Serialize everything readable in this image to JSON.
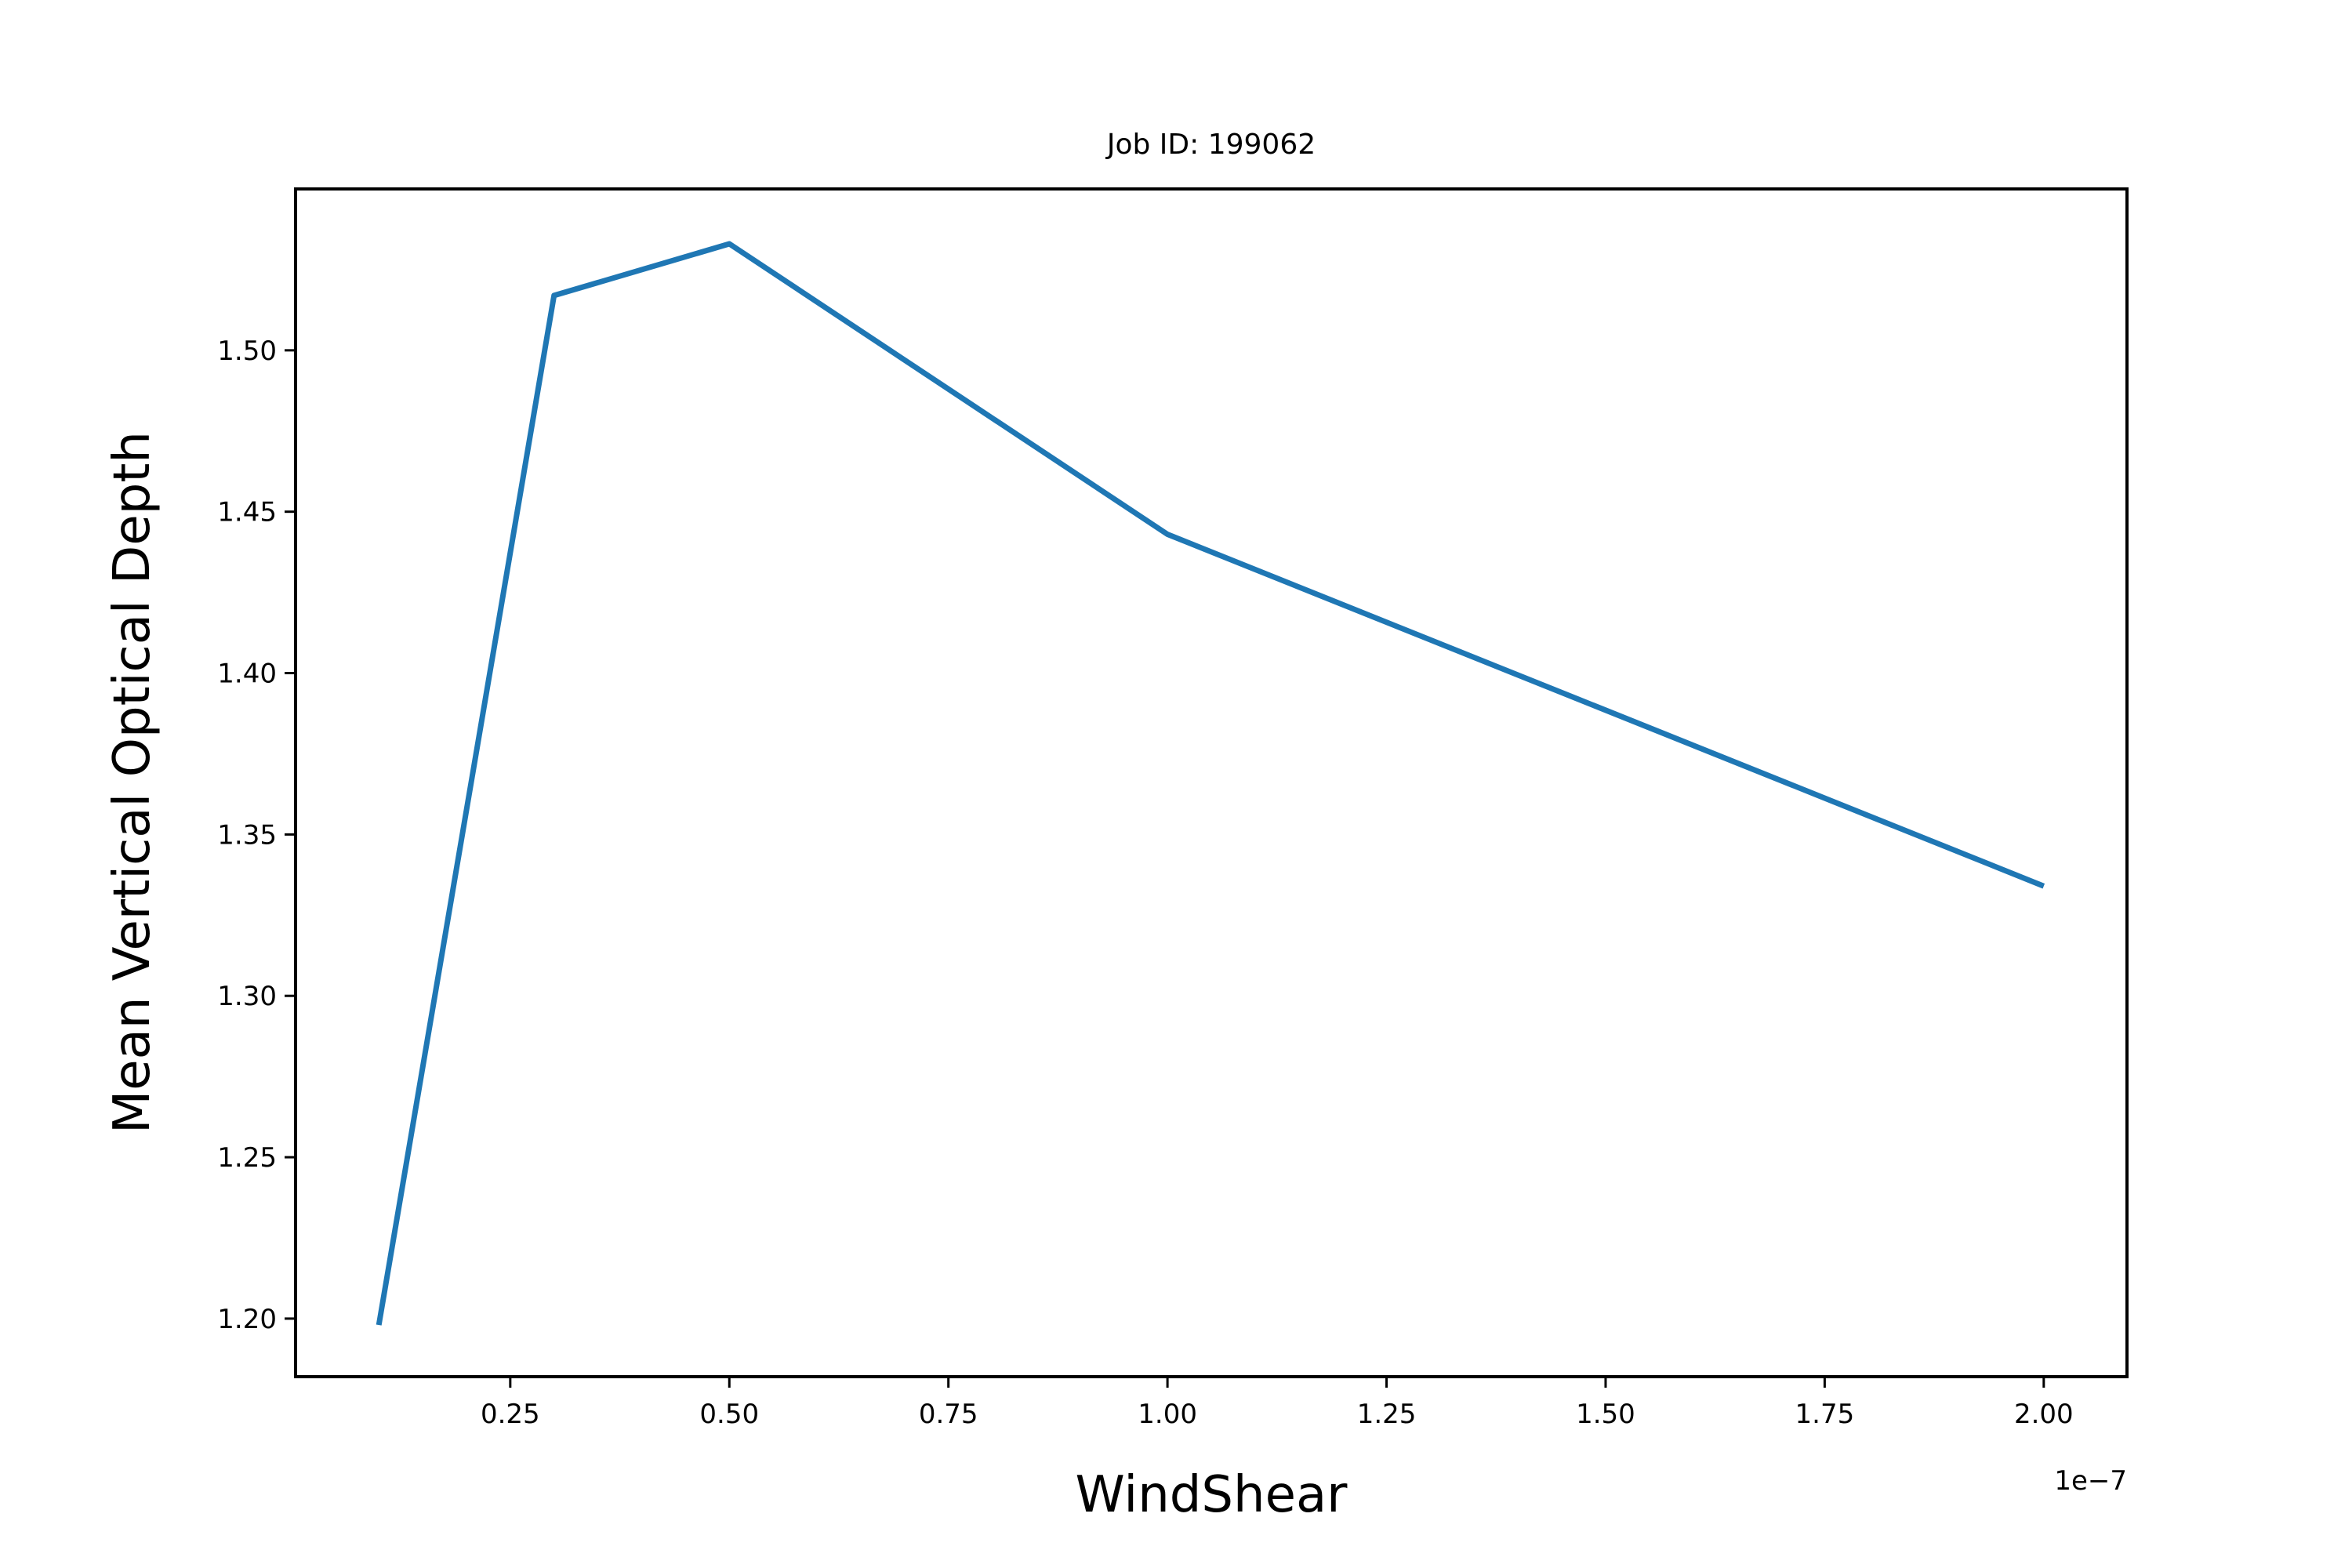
{
  "chart_data": {
    "type": "line",
    "title": "Job ID: 199062",
    "xlabel": "WindShear",
    "ylabel": "Mean Vertical Optical Depth",
    "x_offset_label": "1e−7",
    "x": [
      0.1,
      0.3,
      0.5,
      1.0,
      2.0
    ],
    "series": [
      {
        "values": [
          1.198,
          1.517,
          1.533,
          1.443,
          1.334
        ],
        "color": "#1f77b4"
      }
    ],
    "xlim": [
      0.005,
      2.095
    ],
    "ylim": [
      1.182,
      1.55
    ],
    "xticks": [
      0.25,
      0.5,
      0.75,
      1.0,
      1.25,
      1.5,
      1.75,
      2.0
    ],
    "xtick_labels": [
      "0.25",
      "0.50",
      "0.75",
      "1.00",
      "1.25",
      "1.50",
      "1.75",
      "2.00"
    ],
    "yticks": [
      1.2,
      1.25,
      1.3,
      1.35,
      1.4,
      1.45,
      1.5
    ],
    "ytick_labels": [
      "1.20",
      "1.25",
      "1.30",
      "1.35",
      "1.40",
      "1.45",
      "1.50"
    ],
    "grid": false,
    "legend": false
  }
}
